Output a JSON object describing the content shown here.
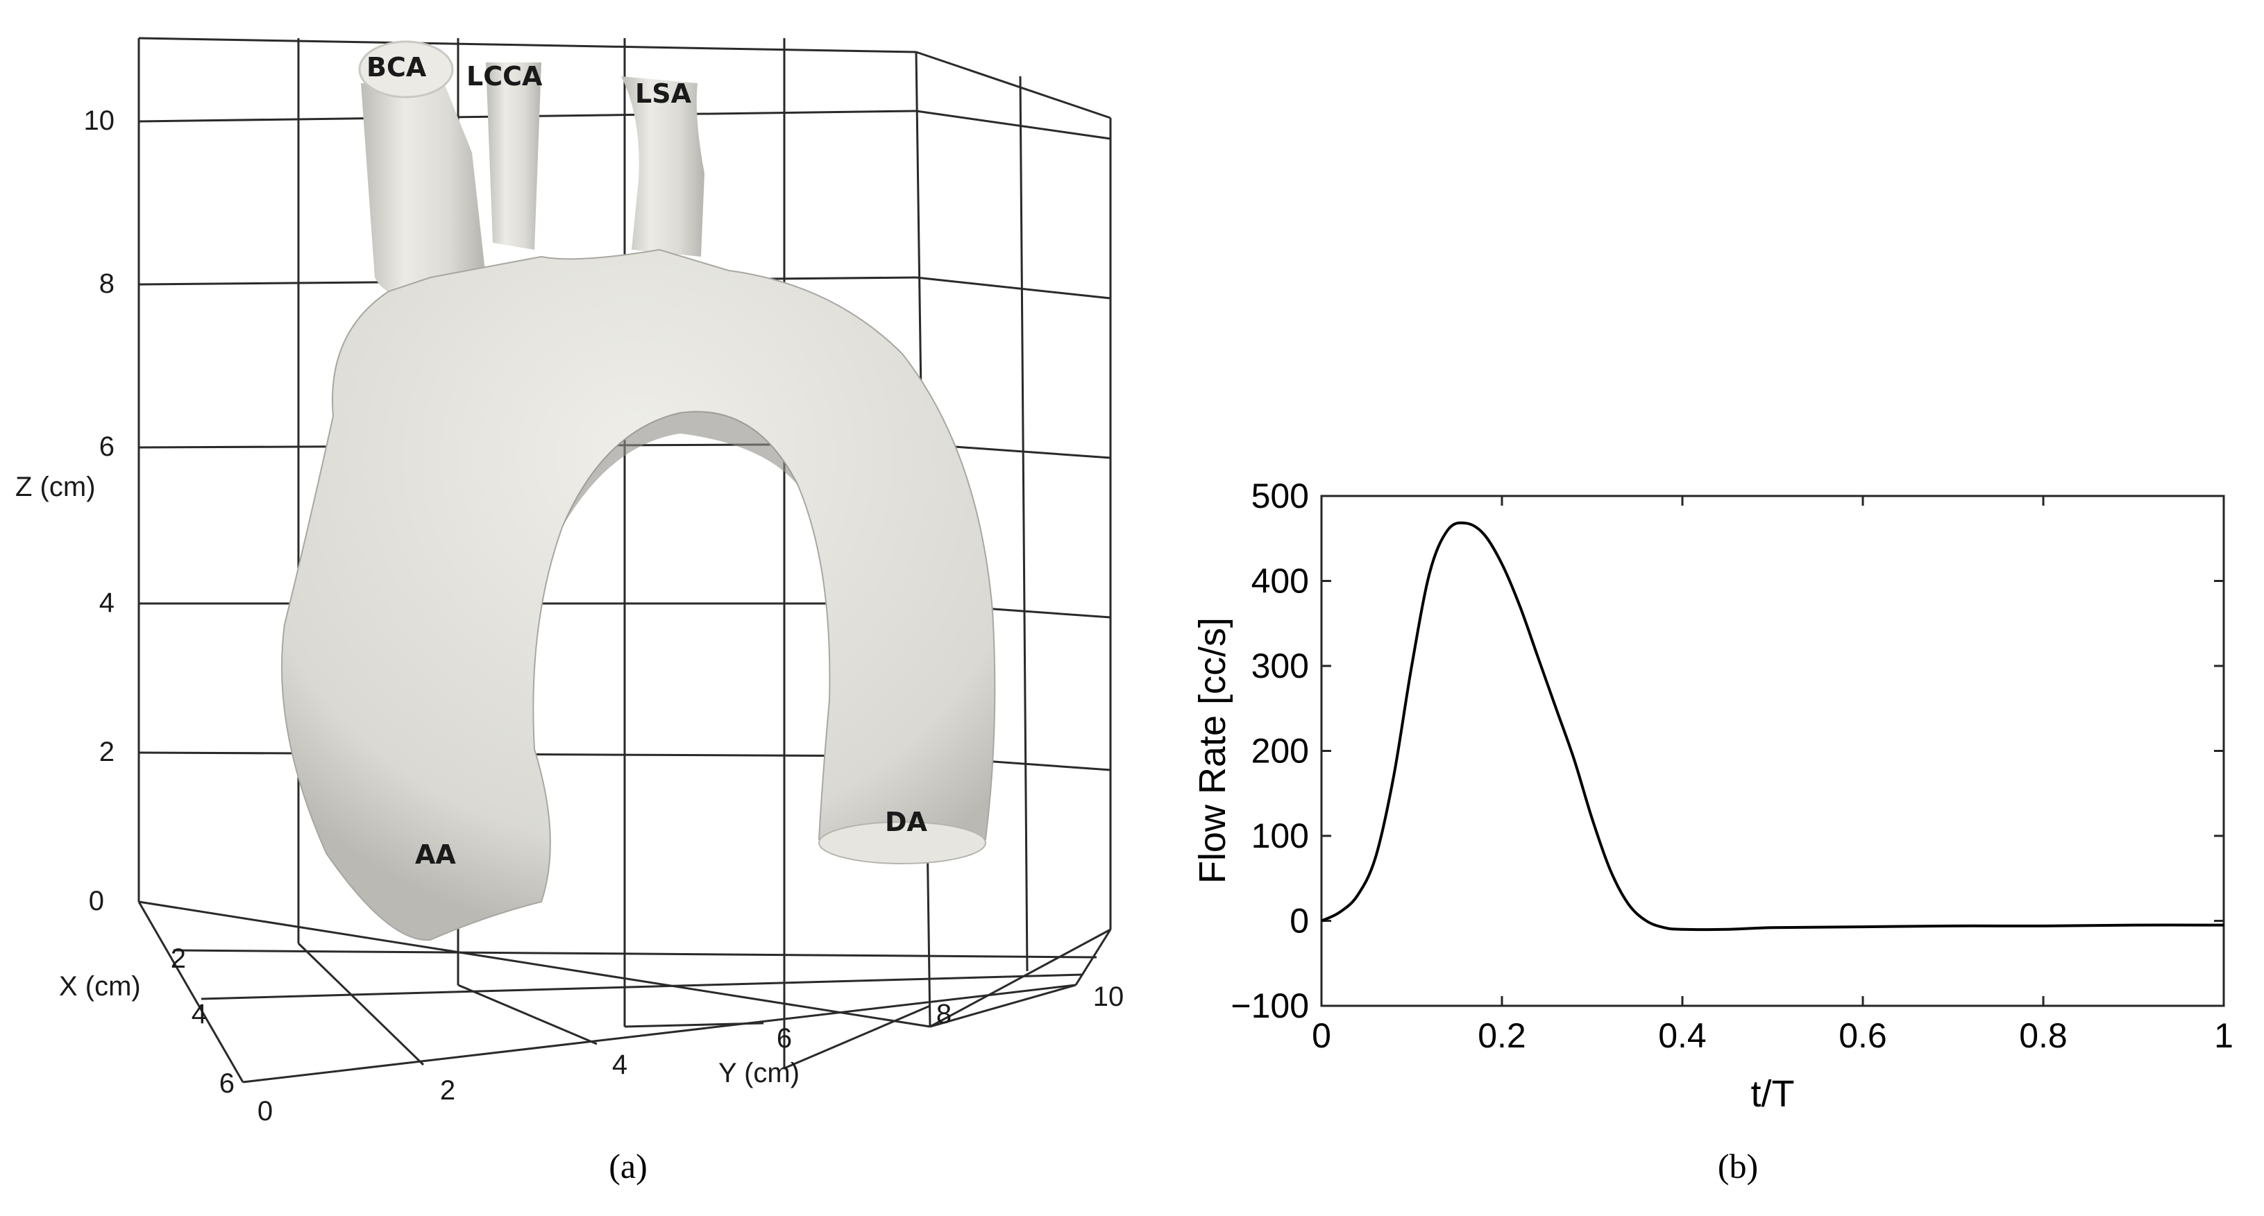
{
  "panel_a": {
    "caption": "(a)",
    "z_axis": {
      "label": "Z (cm)",
      "ticks": [
        "0",
        "2",
        "4",
        "6",
        "8",
        "10"
      ]
    },
    "x_axis": {
      "label": "X (cm)",
      "ticks": [
        "2",
        "4",
        "6"
      ]
    },
    "y_axis": {
      "label": "Y (cm)",
      "ticks": [
        "0",
        "2",
        "4",
        "6",
        "8",
        "10"
      ]
    },
    "vessel_labels": [
      "BCA",
      "LCCA",
      "LSA",
      "AA",
      "DA"
    ],
    "colors": {
      "vessel": "#e9e8e2",
      "vessel_shade": "#b9b8b2",
      "grid": "#2a2a2a"
    }
  },
  "panel_b": {
    "caption": "(b)"
  },
  "chart_data": {
    "type": "line",
    "xlabel": "t/T",
    "ylabel": "Flow Rate [cc/s]",
    "xlim": [
      0,
      1
    ],
    "ylim": [
      -100,
      500
    ],
    "x_ticks": [
      "0",
      "0.2",
      "0.4",
      "0.6",
      "0.8",
      "1"
    ],
    "y_ticks": [
      "−100",
      "0",
      "100",
      "200",
      "300",
      "400",
      "500"
    ],
    "grid": false,
    "series": [
      {
        "color": "#000000",
        "x": [
          0,
          0.02,
          0.04,
          0.06,
          0.08,
          0.1,
          0.12,
          0.14,
          0.16,
          0.18,
          0.2,
          0.22,
          0.24,
          0.26,
          0.28,
          0.3,
          0.32,
          0.34,
          0.36,
          0.38,
          0.4,
          0.45,
          0.5,
          0.6,
          0.7,
          0.8,
          0.9,
          1.0
        ],
        "y": [
          0,
          10,
          30,
          75,
          170,
          300,
          410,
          460,
          468,
          455,
          420,
          370,
          310,
          250,
          190,
          120,
          60,
          20,
          0,
          -8,
          -10,
          -10,
          -8,
          -7,
          -6,
          -6,
          -5,
          -5
        ]
      }
    ]
  }
}
